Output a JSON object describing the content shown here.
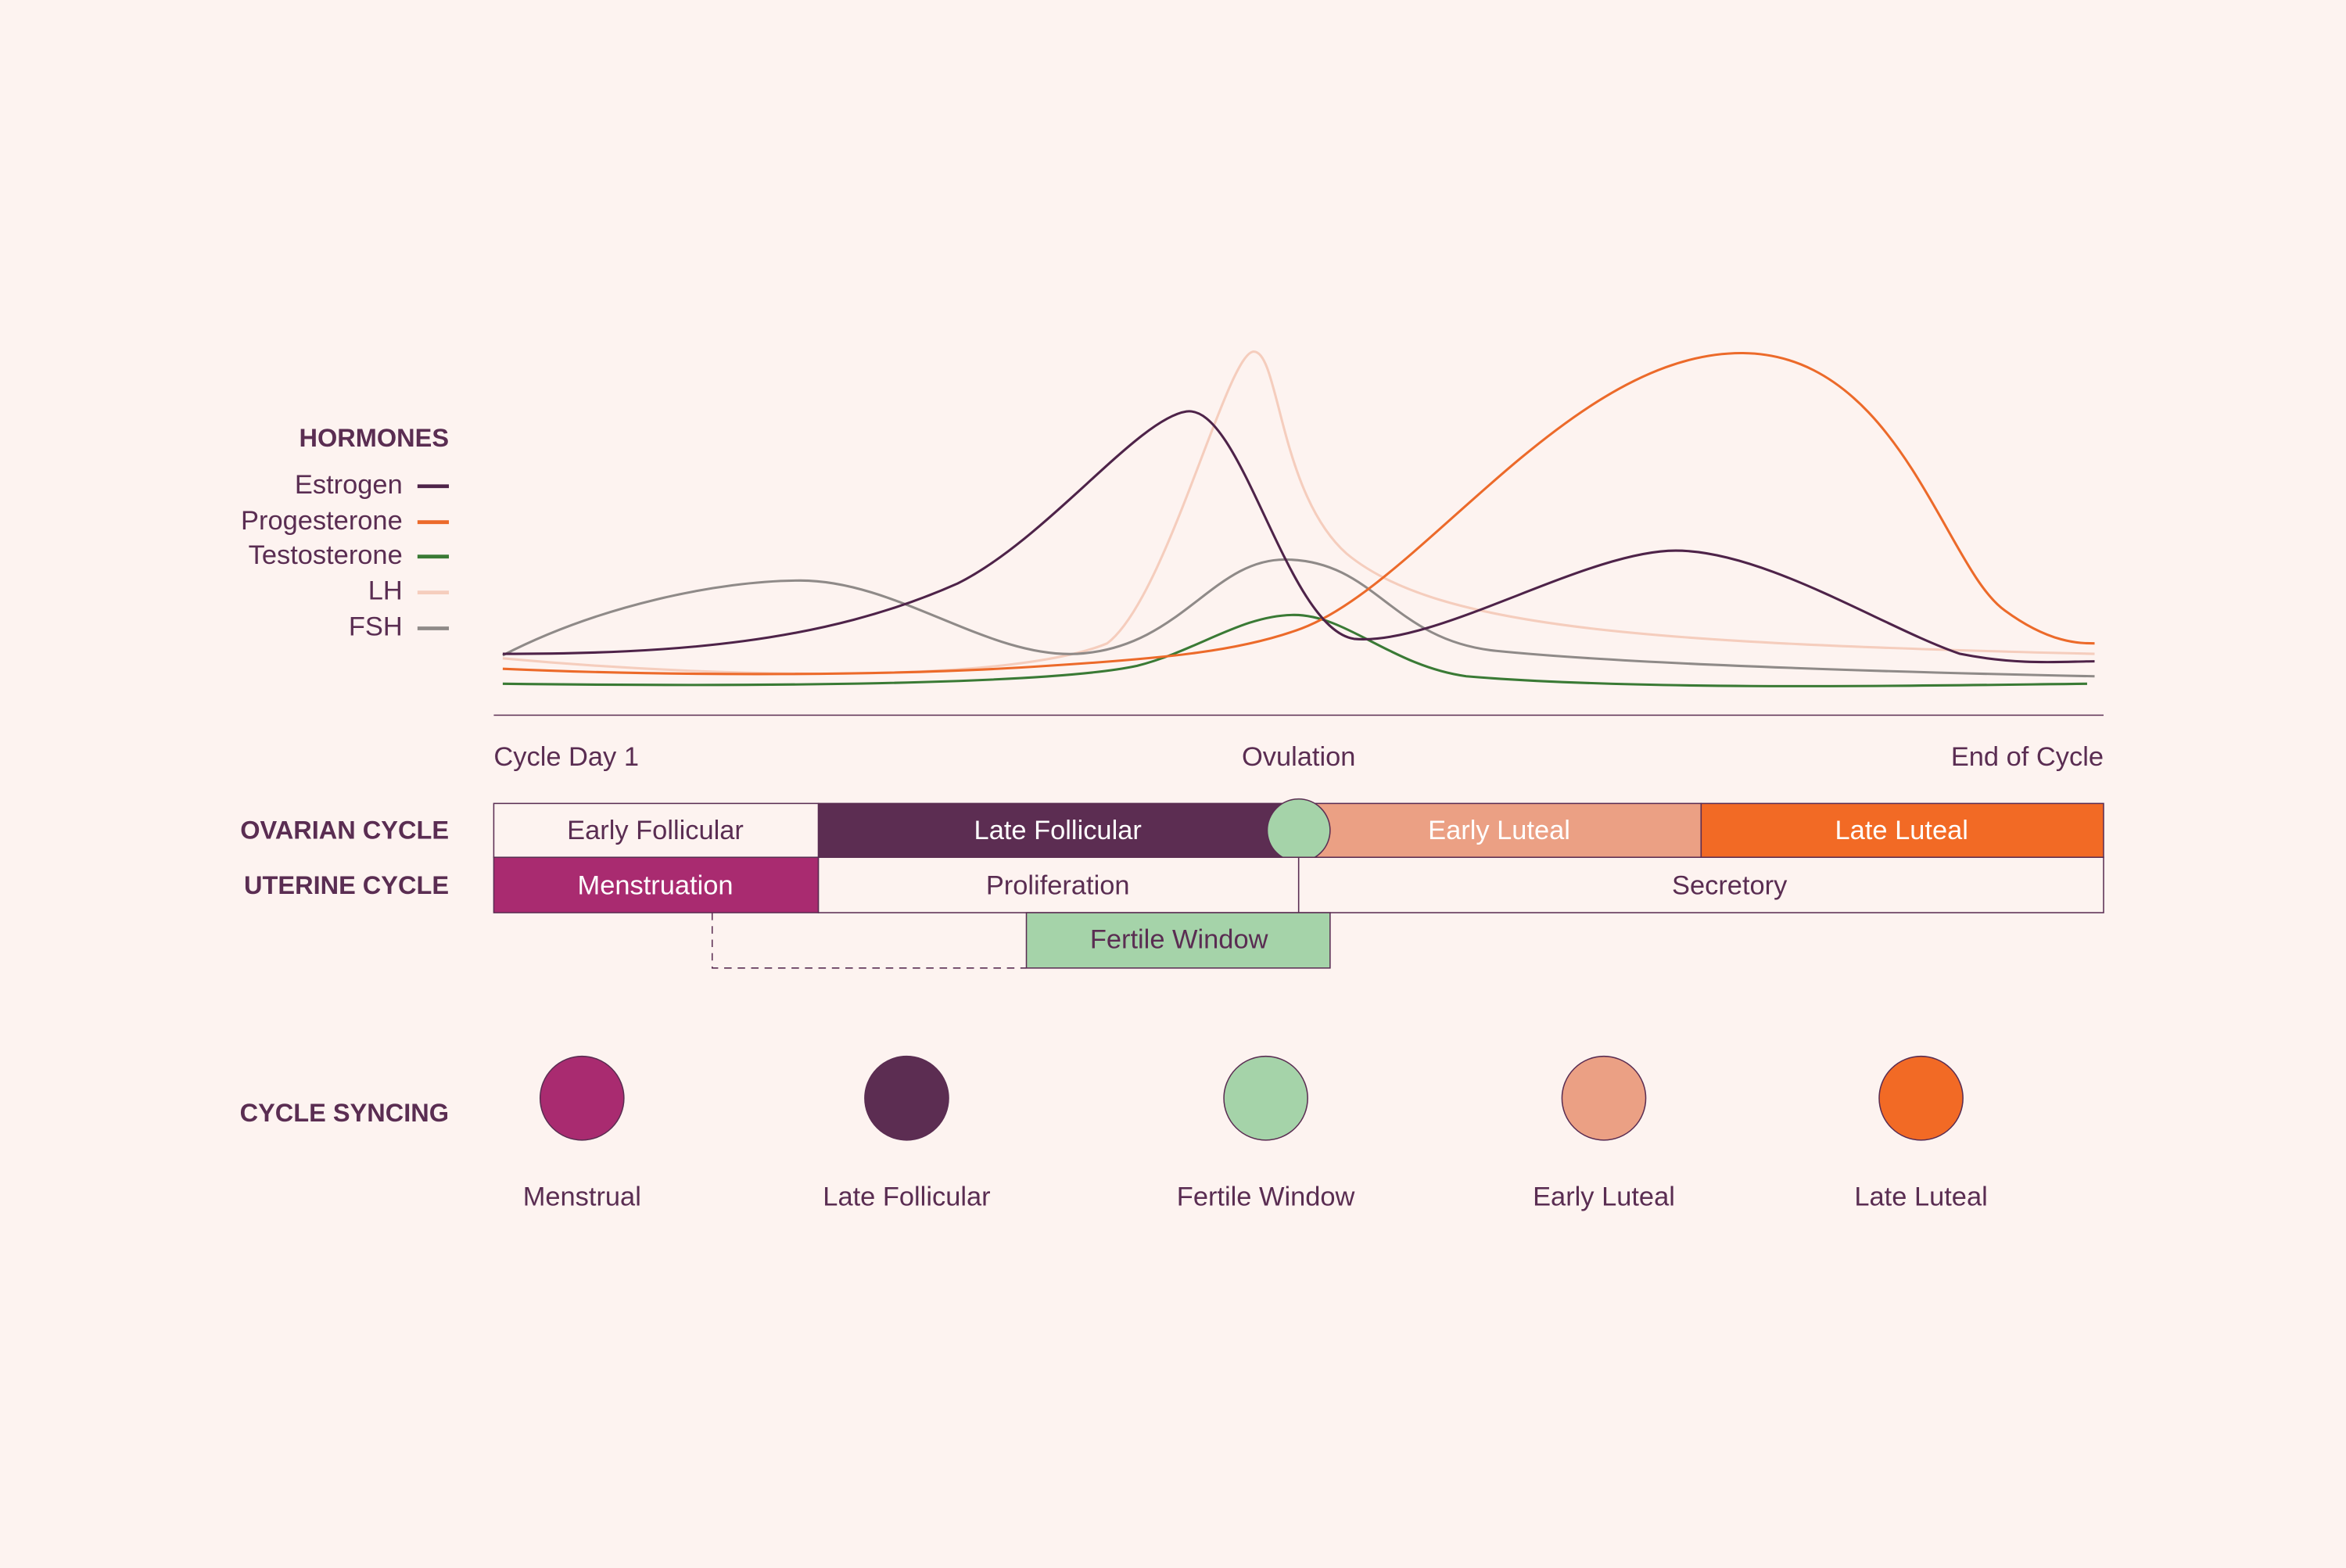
{
  "hormones": {
    "title": "HORMONES",
    "legend": [
      "Estrogen",
      "Progesterone",
      "Testosterone",
      "LH",
      "FSH"
    ]
  },
  "timeline": [
    "Cycle Day 1",
    "Ovulation",
    "End of Cycle"
  ],
  "ovarian_cycle": {
    "label": "OVARIAN CYCLE",
    "phases": [
      "Early Follicular",
      "Late Follicular",
      "Early Luteal",
      "Late Luteal"
    ]
  },
  "uterine_cycle": {
    "label": "UTERINE CYCLE",
    "phases": [
      "Menstruation",
      "Proliferation",
      "Secretory"
    ]
  },
  "fertile_window": "Fertile Window",
  "cycle_syncing": {
    "label": "CYCLE SYNCING",
    "phases": [
      "Menstrual",
      "Late Follicular",
      "Fertile Window",
      "Early Luteal",
      "Late Luteal"
    ]
  }
}
